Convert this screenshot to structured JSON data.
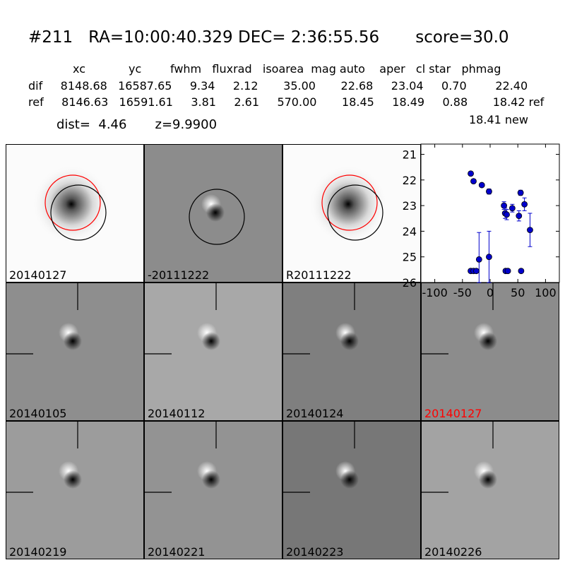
{
  "header": {
    "title": "#211   RA=10:00:40.329 DEC= 2:36:55.56       score=30.0",
    "stats_header": "xc            yc        fwhm   fluxrad   isoarea  mag auto    aper   cl star   phmag",
    "stats_dif": "dif     8148.68   16587.65     9.34     2.12       35.00       22.68     23.04     0.70        22.40",
    "stats_ref": "ref     8146.63   16591.61     3.81     2.61     570.00       18.45     18.49     0.88       18.42 ref",
    "new_mag": "18.41 new",
    "dist_line": "dist=  4.46       z=9.9900"
  },
  "panels": [
    {
      "label": "20140127",
      "kind": "star",
      "circles": true
    },
    {
      "label": "-20111222",
      "kind": "diff",
      "circles": false
    },
    {
      "label": "R20111222",
      "kind": "star",
      "circles": true
    },
    {
      "label": "20140105",
      "kind": "dipole",
      "crosshair": true
    },
    {
      "label": "20140112",
      "kind": "dipole",
      "crosshair": true
    },
    {
      "label": "20140124",
      "kind": "dipole",
      "crosshair": true
    },
    {
      "label": "20140127",
      "kind": "dipole",
      "crosshair": true,
      "highlight": true
    },
    {
      "label": "20140219",
      "kind": "dipole",
      "crosshair": true
    },
    {
      "label": "20140221",
      "kind": "dipole",
      "crosshair": true
    },
    {
      "label": "20140223",
      "kind": "dipole",
      "crosshair": true
    },
    {
      "label": "20140226",
      "kind": "dipole",
      "crosshair": true
    }
  ],
  "colors": {
    "highlight": "#ff0000",
    "points": "#0000cc",
    "ref_circle": "#ff0000",
    "dif_circle": "#000000"
  },
  "chart_data": {
    "type": "scatter",
    "xlim": [
      -125,
      125
    ],
    "ylim": [
      26,
      20.6
    ],
    "xticks": [
      -100,
      -50,
      0,
      50,
      100
    ],
    "yticks": [
      21,
      22,
      23,
      24,
      25,
      26
    ],
    "points": [
      {
        "x": -35,
        "y": 21.75,
        "err": 0.05
      },
      {
        "x": -30,
        "y": 22.05,
        "err": 0.05
      },
      {
        "x": -15,
        "y": 22.2,
        "err": 0.05
      },
      {
        "x": -2,
        "y": 22.45,
        "err": 0.1
      },
      {
        "x": 25,
        "y": 23.0,
        "err": 0.15
      },
      {
        "x": 27,
        "y": 23.3,
        "err": 0.2
      },
      {
        "x": 30,
        "y": 23.35,
        "err": 0.2
      },
      {
        "x": 40,
        "y": 23.1,
        "err": 0.15
      },
      {
        "x": 52,
        "y": 23.4,
        "err": 0.2
      },
      {
        "x": 55,
        "y": 22.5,
        "err": 0.1
      },
      {
        "x": 62,
        "y": 22.95,
        "err": 0.25
      },
      {
        "x": 72,
        "y": 23.95,
        "err": 0.65
      },
      {
        "x": -20,
        "y": 25.1,
        "err": 1.05
      },
      {
        "x": -2,
        "y": 25.0,
        "err": 1.0
      },
      {
        "x": -35,
        "y": 25.55,
        "err": 0.05
      },
      {
        "x": -30,
        "y": 25.55,
        "err": 0.05
      },
      {
        "x": -25,
        "y": 25.55,
        "err": 0.05
      },
      {
        "x": 28,
        "y": 25.55,
        "err": 0.05
      },
      {
        "x": 32,
        "y": 25.55,
        "err": 0.05
      },
      {
        "x": 56,
        "y": 25.55,
        "err": 0.05
      }
    ]
  }
}
